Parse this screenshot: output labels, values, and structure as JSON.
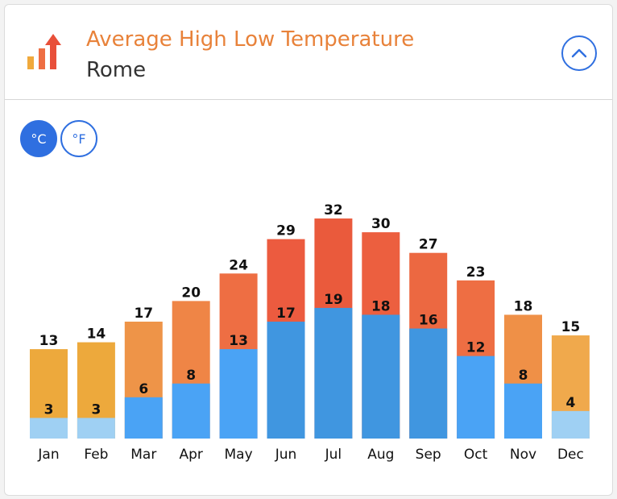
{
  "header": {
    "title": "Average High Low Temperature",
    "subtitle": "Rome",
    "logo_icon": "bar-chart-arrow-icon",
    "collapse_icon": "chevron-up-icon"
  },
  "units": {
    "celsius_label": "°C",
    "fahrenheit_label": "°F",
    "selected": "celsius"
  },
  "colors": {
    "accent": "#2f6fe0",
    "title": "#e8823a"
  },
  "chart_data": {
    "type": "bar",
    "categories": [
      "Jan",
      "Feb",
      "Mar",
      "Apr",
      "May",
      "Jun",
      "Jul",
      "Aug",
      "Sep",
      "Oct",
      "Nov",
      "Dec"
    ],
    "series": [
      {
        "values": [
          13,
          14,
          17,
          20,
          24,
          29,
          32,
          30,
          27,
          23,
          18,
          15
        ]
      },
      {
        "values": [
          3,
          3,
          6,
          8,
          13,
          17,
          19,
          18,
          16,
          12,
          8,
          4
        ]
      }
    ],
    "high_colors": [
      "#eda93c",
      "#eda93c",
      "#ee9448",
      "#ef8546",
      "#ee6e43",
      "#ec5b3f",
      "#ea5a3c",
      "#ec5f3f",
      "#ec6841",
      "#ee6e43",
      "#ef9047",
      "#f0a94c"
    ],
    "low_colors": [
      "#9fd0f3",
      "#9fd0f3",
      "#4aa3f5",
      "#4aa3f5",
      "#4aa3f5",
      "#4096e0",
      "#4096e0",
      "#4096e0",
      "#4096e0",
      "#4aa3f5",
      "#4aa3f5",
      "#9fd0f3"
    ],
    "ylim": [
      0,
      32
    ]
  }
}
